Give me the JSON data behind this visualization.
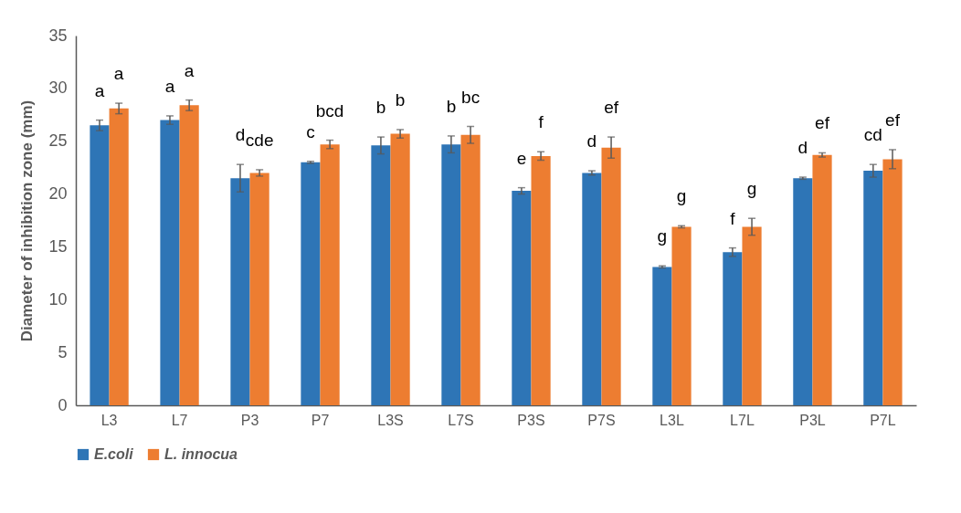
{
  "chart_data": {
    "type": "bar",
    "ylabel": "Diameter of inhibition zone (mm)",
    "categories": [
      "L3",
      "L7",
      "P3",
      "P7",
      "L3S",
      "L7S",
      "P3S",
      "P7S",
      "L3L",
      "L7L",
      "P3L",
      "P7L"
    ],
    "series": [
      {
        "name": "E.coli",
        "color": "#2e75b6",
        "values": [
          26.5,
          27.0,
          21.5,
          23.0,
          24.6,
          24.7,
          20.3,
          22.0,
          13.1,
          14.5,
          21.5,
          22.2
        ],
        "errors": [
          0.5,
          0.4,
          1.3,
          0.1,
          0.8,
          0.8,
          0.3,
          0.2,
          0.1,
          0.4,
          0.1,
          0.6
        ]
      },
      {
        "name": "L. innocua",
        "color": "#ed7d31",
        "values": [
          28.1,
          28.4,
          22.0,
          24.7,
          25.7,
          25.6,
          23.6,
          24.4,
          16.9,
          16.9,
          23.7,
          23.3
        ],
        "errors": [
          0.5,
          0.5,
          0.3,
          0.4,
          0.4,
          0.8,
          0.4,
          1.0,
          0.1,
          0.8,
          0.2,
          0.9
        ]
      }
    ],
    "ylim": [
      0,
      35
    ],
    "yticks": [
      0,
      5,
      10,
      15,
      20,
      25,
      30,
      35
    ],
    "grid": false,
    "legend": "bottom",
    "annotations": [
      "a",
      "a",
      "a",
      "a",
      "d",
      "cde",
      "c",
      "bcd",
      "b",
      "b",
      "b",
      "bc",
      "e",
      "f",
      "d",
      "ef",
      "g",
      "g",
      "f",
      "g",
      "d",
      "ef",
      "cd",
      "ef"
    ]
  }
}
